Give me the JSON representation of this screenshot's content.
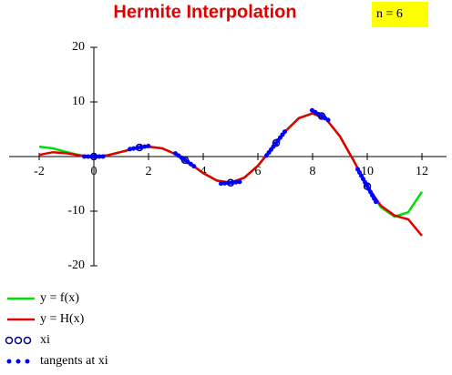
{
  "chart_data": {
    "type": "line",
    "title": "Hermite Interpolation",
    "annotation": "n = 6",
    "xlim": [
      -3.1,
      12.9
    ],
    "ylim": [
      -20,
      20
    ],
    "xticks": [
      -2,
      0,
      2,
      4,
      6,
      8,
      10,
      12
    ],
    "yticks": [
      -20,
      -10,
      10,
      20
    ],
    "series": [
      {
        "name": "y = f(x)",
        "color": "#00e000",
        "style": "line",
        "x": [
          -2,
          -1.5,
          -1,
          -0.5,
          0,
          0.5,
          1,
          1.5,
          2,
          2.5,
          3,
          3.5,
          4,
          4.5,
          5,
          5.5,
          6,
          6.5,
          7,
          7.5,
          8,
          8.5,
          9,
          9.5,
          10,
          10.5,
          11,
          11.5,
          12
        ],
        "values": [
          1.82,
          1.5,
          0.84,
          0.24,
          0,
          0.24,
          0.84,
          1.5,
          1.82,
          1.5,
          0.42,
          -1.23,
          -3.03,
          -4.4,
          -4.79,
          -3.89,
          -1.68,
          1.4,
          4.6,
          7.04,
          7.91,
          6.83,
          3.71,
          -0.72,
          -5.44,
          -9.28,
          -10.99,
          -10.2,
          -6.44
        ]
      },
      {
        "name": "y = H(x)",
        "color": "#e00000",
        "style": "line",
        "x": [
          -2,
          -1.5,
          -1,
          -0.5,
          0,
          0.5,
          1,
          1.5,
          2,
          2.5,
          3,
          3.5,
          4,
          4.5,
          5,
          5.5,
          6,
          6.5,
          7,
          7.5,
          8,
          8.5,
          9,
          9.5,
          10,
          10.5,
          11,
          11.5,
          12
        ],
        "values": [
          0.3,
          0.8,
          0.6,
          0.2,
          0,
          0.24,
          0.84,
          1.5,
          1.82,
          1.5,
          0.42,
          -1.23,
          -3.03,
          -4.4,
          -4.79,
          -3.89,
          -1.68,
          1.4,
          4.6,
          7.04,
          7.91,
          6.83,
          3.71,
          -0.72,
          -5.44,
          -9,
          -10.8,
          -11.5,
          -14.5
        ]
      },
      {
        "name": "xi",
        "color": "#000080",
        "style": "circles",
        "x": [
          0,
          1.667,
          3.333,
          5,
          6.667,
          8.333,
          10
        ],
        "values": [
          0,
          1.66,
          -0.64,
          -4.79,
          2.49,
          7.41,
          -5.44
        ]
      },
      {
        "name": "tangents at xi",
        "color": "#0000ff",
        "style": "dots",
        "x": [
          0,
          1.667,
          3.333,
          5,
          6.667,
          8.333,
          10
        ],
        "values": [
          0,
          1.66,
          -0.64,
          -4.79,
          2.49,
          7.41,
          -5.44
        ],
        "slopes": [
          0,
          0.83,
          -3.46,
          0.46,
          6.56,
          -3.05,
          -8.93
        ]
      }
    ]
  }
}
